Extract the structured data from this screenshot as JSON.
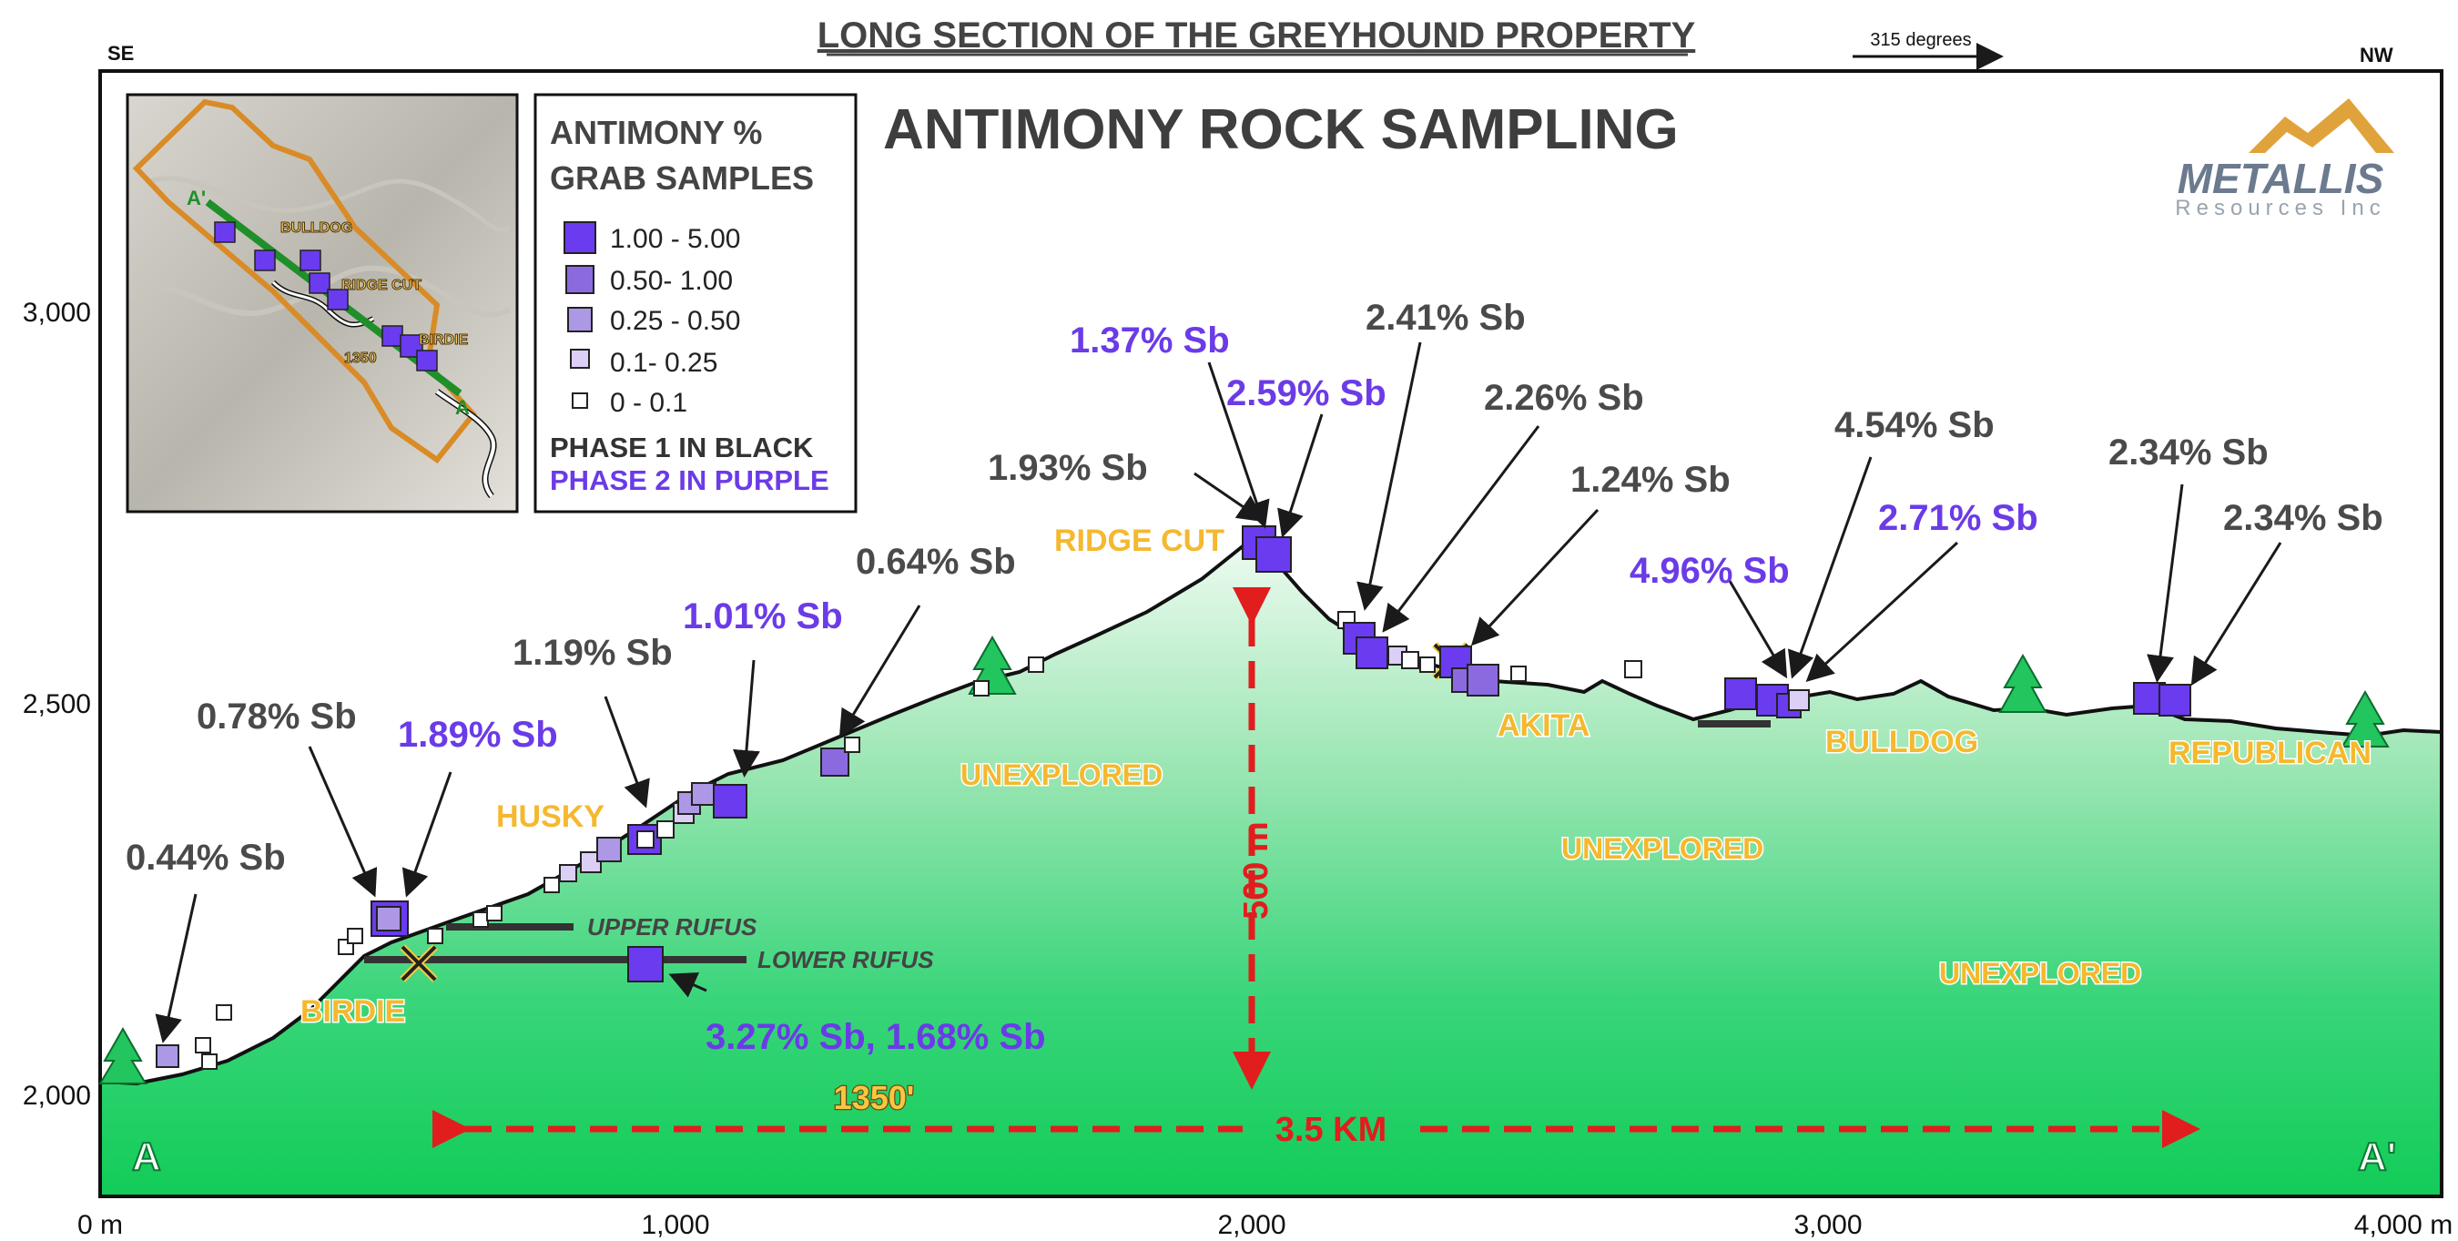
{
  "title": "LONG SECTION OF THE GREYHOUND PROPERTY",
  "subtitle": "ANTIMONY ROCK SAMPLING",
  "direction": {
    "left": "SE",
    "right": "NW",
    "bearing": "315 degrees"
  },
  "logo": {
    "name": "METALLIS",
    "tagline": "Resources Inc"
  },
  "legend": {
    "title_line1": "ANTIMONY %",
    "title_line2": "GRAB SAMPLES",
    "items": [
      {
        "label": "1.00 - 5.00",
        "color": "#6b3bf0"
      },
      {
        "label": "0.50- 1.00",
        "color": "#8b6ae0"
      },
      {
        "label": "0.25 - 0.50",
        "color": "#ad98e6"
      },
      {
        "label": "0.1- 0.25",
        "color": "#dccff5"
      },
      {
        "label": "0 - 0.1",
        "color": "#ffffff"
      }
    ],
    "phase1": "PHASE 1 IN BLACK",
    "phase2": "PHASE 2 IN PURPLE"
  },
  "inset_map": {
    "labels": [
      "A'",
      "BULLDOG",
      "RIDGE CUT",
      "BIRDIE",
      "1350",
      "A"
    ]
  },
  "axes": {
    "y_ticks": [
      "3,000",
      "2,500",
      "2,000"
    ],
    "x_ticks": [
      "0 m",
      "1,000",
      "2,000",
      "3,000",
      "4,000 m"
    ]
  },
  "section_ends": {
    "start": "A",
    "end": "A'"
  },
  "scale": {
    "vertical": "500 m",
    "horizontal": "3.5 KM"
  },
  "prospects": [
    "BIRDIE",
    "HUSKY",
    "RIDGE CUT",
    "AKITA",
    "BULLDOG",
    "REPUBLICAN"
  ],
  "unexplored_label": "UNEXPLORED",
  "adits": {
    "upper": "UPPER RUFUS",
    "lower": "LOWER RUFUS",
    "level": "1350'"
  },
  "callouts": [
    {
      "text": "0.44% Sb",
      "phase": 1
    },
    {
      "text": "0.78% Sb",
      "phase": 1
    },
    {
      "text": "1.89% Sb",
      "phase": 2
    },
    {
      "text": "1.19% Sb",
      "phase": 1
    },
    {
      "text": "1.01% Sb",
      "phase": 2
    },
    {
      "text": "0.64% Sb",
      "phase": 1
    },
    {
      "text": "1.93% Sb",
      "phase": 1
    },
    {
      "text": "1.37% Sb",
      "phase": 2
    },
    {
      "text": "2.59% Sb",
      "phase": 2
    },
    {
      "text": "2.41% Sb",
      "phase": 1
    },
    {
      "text": "2.26% Sb",
      "phase": 1
    },
    {
      "text": "1.24% Sb",
      "phase": 1
    },
    {
      "text": "4.96% Sb",
      "phase": 2
    },
    {
      "text": "4.54% Sb",
      "phase": 1
    },
    {
      "text": "2.71% Sb",
      "phase": 2
    },
    {
      "text": "2.34% Sb",
      "phase": 1
    },
    {
      "text": "2.34% Sb",
      "phase": 1
    },
    {
      "text": "3.27% Sb, 1.68% Sb",
      "phase": 2
    }
  ]
}
